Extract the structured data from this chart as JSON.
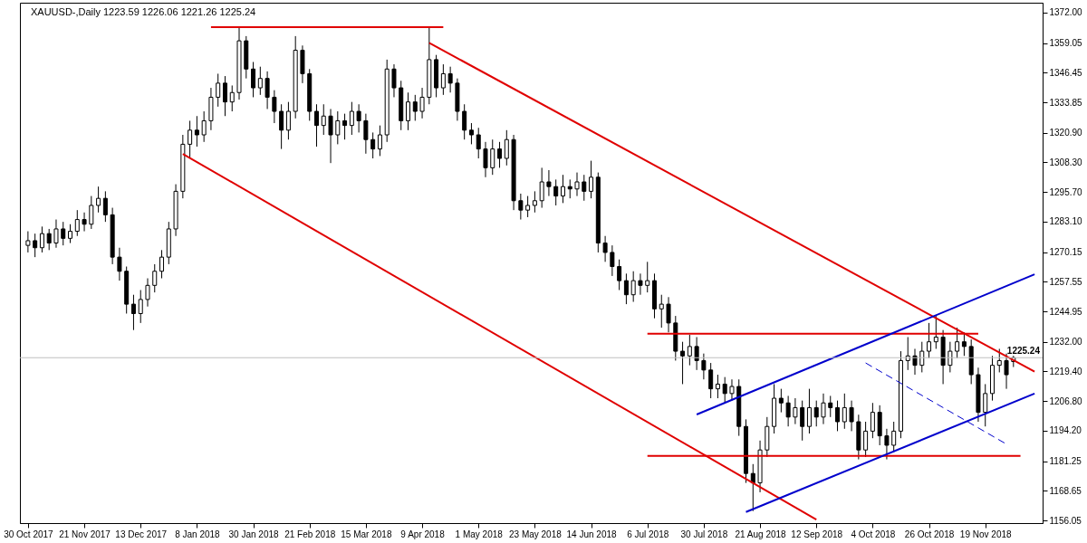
{
  "chart_data": {
    "type": "candlestick",
    "title": "XAUUSD-,Daily",
    "subtitle": "1223.59 1226.06 1221.26 1225.24",
    "categories": [
      "30 Oct 2017",
      null,
      null,
      null,
      null,
      null,
      null,
      null,
      "21 Nov 2017",
      null,
      null,
      null,
      null,
      null,
      null,
      null,
      "13 Dec 2017",
      null,
      null,
      null,
      null,
      null,
      null,
      null,
      "8 Jan 2018",
      null,
      null,
      null,
      null,
      null,
      null,
      null,
      "30 Jan 2018",
      null,
      null,
      null,
      null,
      null,
      null,
      null,
      "21 Feb 2018",
      null,
      null,
      null,
      null,
      null,
      null,
      null,
      "15 Mar 2018",
      null,
      null,
      null,
      null,
      null,
      null,
      null,
      "9 Apr 2018",
      null,
      null,
      null,
      null,
      null,
      null,
      null,
      "1 May 2018",
      null,
      null,
      null,
      null,
      null,
      null,
      null,
      "23 May 2018",
      null,
      null,
      null,
      null,
      null,
      null,
      null,
      "14 Jun 2018",
      null,
      null,
      null,
      null,
      null,
      null,
      null,
      "6 Jul 2018",
      null,
      null,
      null,
      null,
      null,
      null,
      null,
      "30 Jul 2018",
      null,
      null,
      null,
      null,
      null,
      null,
      null,
      "21 Aug 2018",
      null,
      null,
      null,
      null,
      null,
      null,
      null,
      "12 Sep 2018",
      null,
      null,
      null,
      null,
      null,
      null,
      null,
      "4 Oct 2018",
      null,
      null,
      null,
      null,
      null,
      null,
      null,
      "26 Oct 2018",
      null,
      null,
      null,
      null,
      null,
      null,
      null,
      "19 Nov 2018",
      null,
      null,
      null,
      null,
      null,
      null,
      null
    ],
    "ohlc": [
      [
        1273,
        1279,
        1270,
        1275
      ],
      [
        1275,
        1278,
        1268,
        1272
      ],
      [
        1272,
        1281,
        1270,
        1278
      ],
      [
        1278,
        1280,
        1271,
        1274
      ],
      [
        1274,
        1284,
        1272,
        1280
      ],
      [
        1280,
        1283,
        1273,
        1276
      ],
      [
        1276,
        1282,
        1274,
        1279
      ],
      [
        1279,
        1288,
        1277,
        1284
      ],
      [
        1284,
        1287,
        1279,
        1282
      ],
      [
        1282,
        1294,
        1280,
        1290
      ],
      [
        1290,
        1298,
        1287,
        1293
      ],
      [
        1293,
        1296,
        1283,
        1286
      ],
      [
        1286,
        1289,
        1265,
        1268
      ],
      [
        1268,
        1272,
        1258,
        1262
      ],
      [
        1262,
        1264,
        1244,
        1248
      ],
      [
        1248,
        1252,
        1237,
        1244
      ],
      [
        1244,
        1254,
        1240,
        1250
      ],
      [
        1250,
        1259,
        1247,
        1256
      ],
      [
        1256,
        1265,
        1253,
        1262
      ],
      [
        1262,
        1271,
        1259,
        1268
      ],
      [
        1268,
        1283,
        1265,
        1280
      ],
      [
        1280,
        1299,
        1277,
        1296
      ],
      [
        1296,
        1320,
        1293,
        1316
      ],
      [
        1316,
        1326,
        1310,
        1322
      ],
      [
        1322,
        1328,
        1315,
        1320
      ],
      [
        1320,
        1330,
        1317,
        1326
      ],
      [
        1326,
        1340,
        1322,
        1336
      ],
      [
        1336,
        1346,
        1332,
        1342
      ],
      [
        1342,
        1345,
        1328,
        1334
      ],
      [
        1334,
        1341,
        1330,
        1338
      ],
      [
        1338,
        1366,
        1335,
        1360
      ],
      [
        1360,
        1362,
        1344,
        1348
      ],
      [
        1348,
        1351,
        1336,
        1340
      ],
      [
        1340,
        1349,
        1337,
        1344
      ],
      [
        1344,
        1347,
        1331,
        1336
      ],
      [
        1336,
        1339,
        1325,
        1330
      ],
      [
        1330,
        1333,
        1314,
        1322
      ],
      [
        1322,
        1334,
        1318,
        1330
      ],
      [
        1330,
        1362,
        1327,
        1356
      ],
      [
        1356,
        1358,
        1342,
        1346
      ],
      [
        1346,
        1348,
        1326,
        1330
      ],
      [
        1330,
        1333,
        1315,
        1324
      ],
      [
        1324,
        1333,
        1320,
        1328
      ],
      [
        1328,
        1331,
        1308,
        1320
      ],
      [
        1320,
        1330,
        1316,
        1326
      ],
      [
        1326,
        1329,
        1318,
        1324
      ],
      [
        1324,
        1334,
        1320,
        1330
      ],
      [
        1330,
        1333,
        1321,
        1326
      ],
      [
        1326,
        1329,
        1312,
        1318
      ],
      [
        1318,
        1321,
        1310,
        1314
      ],
      [
        1314,
        1324,
        1311,
        1320
      ],
      [
        1320,
        1352,
        1317,
        1348
      ],
      [
        1348,
        1350,
        1336,
        1340
      ],
      [
        1340,
        1343,
        1322,
        1326
      ],
      [
        1326,
        1338,
        1322,
        1334
      ],
      [
        1334,
        1337,
        1326,
        1330
      ],
      [
        1330,
        1340,
        1327,
        1336
      ],
      [
        1336,
        1366,
        1333,
        1352
      ],
      [
        1352,
        1354,
        1336,
        1340
      ],
      [
        1340,
        1350,
        1337,
        1346
      ],
      [
        1346,
        1349,
        1338,
        1342
      ],
      [
        1342,
        1344,
        1326,
        1330
      ],
      [
        1330,
        1333,
        1318,
        1322
      ],
      [
        1322,
        1325,
        1316,
        1320
      ],
      [
        1320,
        1323,
        1310,
        1314
      ],
      [
        1314,
        1317,
        1302,
        1306
      ],
      [
        1306,
        1318,
        1303,
        1314
      ],
      [
        1314,
        1317,
        1306,
        1310
      ],
      [
        1310,
        1322,
        1307,
        1318
      ],
      [
        1318,
        1320,
        1288,
        1292
      ],
      [
        1292,
        1295,
        1284,
        1288
      ],
      [
        1288,
        1294,
        1285,
        1290
      ],
      [
        1290,
        1296,
        1287,
        1292
      ],
      [
        1292,
        1306,
        1289,
        1300
      ],
      [
        1300,
        1305,
        1294,
        1298
      ],
      [
        1298,
        1301,
        1290,
        1294
      ],
      [
        1294,
        1303,
        1291,
        1298
      ],
      [
        1298,
        1301,
        1293,
        1297
      ],
      [
        1297,
        1304,
        1294,
        1300
      ],
      [
        1300,
        1303,
        1292,
        1296
      ],
      [
        1296,
        1309,
        1293,
        1302
      ],
      [
        1302,
        1304,
        1270,
        1274
      ],
      [
        1274,
        1277,
        1266,
        1270
      ],
      [
        1270,
        1273,
        1260,
        1264
      ],
      [
        1264,
        1267,
        1254,
        1258
      ],
      [
        1258,
        1261,
        1248,
        1252
      ],
      [
        1252,
        1262,
        1249,
        1258
      ],
      [
        1258,
        1261,
        1252,
        1256
      ],
      [
        1256,
        1266,
        1253,
        1258
      ],
      [
        1258,
        1261,
        1242,
        1246
      ],
      [
        1246,
        1252,
        1238,
        1248
      ],
      [
        1248,
        1251,
        1236,
        1240
      ],
      [
        1240,
        1243,
        1224,
        1228
      ],
      [
        1228,
        1232,
        1214,
        1226
      ],
      [
        1226,
        1235,
        1222,
        1230
      ],
      [
        1230,
        1234,
        1220,
        1224
      ],
      [
        1224,
        1227,
        1216,
        1220
      ],
      [
        1220,
        1223,
        1208,
        1212
      ],
      [
        1212,
        1218,
        1208,
        1214
      ],
      [
        1214,
        1217,
        1206,
        1210
      ],
      [
        1210,
        1216,
        1207,
        1213
      ],
      [
        1213,
        1216,
        1192,
        1196
      ],
      [
        1196,
        1199,
        1172,
        1176
      ],
      [
        1176,
        1180,
        1160,
        1172
      ],
      [
        1172,
        1190,
        1168,
        1186
      ],
      [
        1186,
        1200,
        1183,
        1196
      ],
      [
        1196,
        1214,
        1193,
        1208
      ],
      [
        1208,
        1212,
        1202,
        1206
      ],
      [
        1206,
        1209,
        1196,
        1200
      ],
      [
        1200,
        1208,
        1197,
        1204
      ],
      [
        1204,
        1207,
        1190,
        1196
      ],
      [
        1196,
        1212,
        1193,
        1204
      ],
      [
        1204,
        1207,
        1196,
        1200
      ],
      [
        1200,
        1210,
        1197,
        1206
      ],
      [
        1206,
        1209,
        1200,
        1204
      ],
      [
        1204,
        1207,
        1194,
        1198
      ],
      [
        1198,
        1210,
        1195,
        1204
      ],
      [
        1204,
        1207,
        1194,
        1198
      ],
      [
        1198,
        1201,
        1182,
        1186
      ],
      [
        1186,
        1198,
        1183,
        1194
      ],
      [
        1194,
        1206,
        1191,
        1202
      ],
      [
        1202,
        1205,
        1188,
        1192
      ],
      [
        1192,
        1195,
        1182,
        1188
      ],
      [
        1188,
        1198,
        1185,
        1194
      ],
      [
        1194,
        1228,
        1191,
        1224
      ],
      [
        1224,
        1234,
        1220,
        1226
      ],
      [
        1226,
        1229,
        1218,
        1222
      ],
      [
        1222,
        1232,
        1219,
        1228
      ],
      [
        1228,
        1240,
        1225,
        1232
      ],
      [
        1232,
        1243,
        1229,
        1234
      ],
      [
        1234,
        1237,
        1214,
        1222
      ],
      [
        1222,
        1232,
        1219,
        1228
      ],
      [
        1228,
        1238,
        1225,
        1232
      ],
      [
        1232,
        1236,
        1226,
        1230
      ],
      [
        1230,
        1233,
        1214,
        1218
      ],
      [
        1218,
        1221,
        1198,
        1202
      ],
      [
        1202,
        1214,
        1196,
        1210
      ],
      [
        1210,
        1226,
        1207,
        1222
      ],
      [
        1222,
        1229,
        1219,
        1224
      ],
      [
        1224,
        1227,
        1212,
        1218
      ],
      [
        1223.59,
        1226.06,
        1221.26,
        1225.24
      ],
      null,
      null,
      null
    ],
    "series": [
      {
        "type": "line",
        "color": "#e00000",
        "values": [
          null,
          null,
          null,
          null,
          null,
          null,
          null,
          null,
          null,
          null,
          null,
          null,
          null,
          null,
          null,
          null,
          null,
          null,
          null,
          null,
          null,
          null,
          null,
          null,
          null,
          null,
          1365.8,
          null,
          null,
          null,
          null,
          null,
          null,
          null,
          null,
          null,
          null,
          null,
          null,
          null,
          null,
          null,
          null,
          null,
          null,
          null,
          null,
          null,
          null,
          null,
          null,
          null,
          null,
          null,
          null,
          null,
          null,
          null,
          null,
          1365.8,
          null,
          null,
          null,
          null,
          null,
          null,
          null,
          null,
          null,
          null,
          null,
          null,
          null,
          null,
          null,
          null,
          null,
          null,
          null,
          null,
          null,
          null,
          null,
          null,
          null,
          null,
          null,
          null,
          null,
          null,
          null,
          null,
          null,
          null,
          null,
          null,
          null,
          null,
          null,
          null,
          null,
          null,
          null,
          null,
          null,
          null,
          null,
          null,
          null,
          null,
          null,
          null,
          null,
          null,
          null,
          null,
          null,
          null,
          null,
          null,
          null,
          null,
          null,
          null,
          null,
          null,
          null,
          null,
          null,
          null,
          null,
          null,
          null,
          null,
          null,
          null,
          null,
          null,
          null,
          null,
          null,
          null,
          null,
          null
        ]
      },
      {
        "type": "line",
        "color": "#e00000",
        "values": [
          null,
          null,
          null,
          null,
          null,
          null,
          null,
          null,
          null,
          null,
          null,
          null,
          null,
          null,
          null,
          null,
          null,
          null,
          null,
          null,
          null,
          null,
          null,
          null,
          null,
          null,
          null,
          null,
          null,
          null,
          null,
          null,
          null,
          null,
          null,
          null,
          null,
          null,
          null,
          null,
          null,
          null,
          null,
          null,
          null,
          null,
          null,
          null,
          null,
          null,
          null,
          null,
          null,
          null,
          null,
          null,
          null,
          1359.1,
          null,
          null,
          null,
          null,
          null,
          null,
          null,
          null,
          null,
          null,
          null,
          null,
          null,
          null,
          null,
          null,
          null,
          null,
          null,
          null,
          null,
          null,
          null,
          null,
          null,
          null,
          null,
          null,
          null,
          null,
          null,
          null,
          null,
          null,
          null,
          null,
          null,
          null,
          null,
          null,
          null,
          null,
          null,
          null,
          null,
          null,
          null,
          null,
          null,
          null,
          null,
          null,
          null,
          null,
          null,
          null,
          null,
          null,
          null,
          null,
          null,
          null,
          null,
          null,
          null,
          null,
          null,
          null,
          null,
          null,
          null,
          null,
          null,
          null,
          null,
          null,
          null,
          null,
          null,
          null,
          null,
          null,
          null,
          null,
          null,
          1219.3
        ]
      },
      {
        "type": "line",
        "color": "#e00000",
        "values": [
          null,
          null,
          null,
          null,
          null,
          null,
          null,
          null,
          null,
          null,
          null,
          null,
          null,
          null,
          null,
          null,
          null,
          null,
          null,
          null,
          null,
          null,
          1311.9,
          null,
          null,
          null,
          null,
          null,
          null,
          null,
          null,
          null,
          null,
          null,
          null,
          null,
          null,
          null,
          null,
          null,
          null,
          null,
          null,
          null,
          null,
          null,
          null,
          null,
          null,
          null,
          null,
          null,
          null,
          null,
          null,
          null,
          null,
          null,
          null,
          null,
          null,
          null,
          null,
          null,
          null,
          null,
          null,
          null,
          null,
          null,
          null,
          null,
          null,
          null,
          null,
          null,
          null,
          null,
          null,
          null,
          null,
          null,
          null,
          null,
          null,
          null,
          null,
          null,
          null,
          null,
          null,
          null,
          null,
          null,
          null,
          null,
          null,
          null,
          null,
          null,
          null,
          null,
          null,
          null,
          null,
          null,
          null,
          null,
          null,
          null,
          null,
          null,
          1156.4,
          null,
          null,
          null,
          null,
          null,
          null,
          null,
          null,
          null,
          null,
          null,
          null,
          null,
          null,
          null,
          null,
          null,
          null,
          null,
          null,
          null,
          null,
          null,
          null,
          null,
          null,
          null,
          null,
          null,
          null,
          null
        ]
      },
      {
        "type": "line",
        "color": "#e00000",
        "values": [
          null,
          null,
          null,
          null,
          null,
          null,
          null,
          null,
          null,
          null,
          null,
          null,
          null,
          null,
          null,
          null,
          null,
          null,
          null,
          null,
          null,
          null,
          null,
          null,
          null,
          null,
          null,
          null,
          null,
          null,
          null,
          null,
          null,
          null,
          null,
          null,
          null,
          null,
          null,
          null,
          null,
          null,
          null,
          null,
          null,
          null,
          null,
          null,
          null,
          null,
          null,
          null,
          null,
          null,
          null,
          null,
          null,
          null,
          null,
          null,
          null,
          null,
          null,
          null,
          null,
          null,
          null,
          null,
          null,
          null,
          null,
          null,
          null,
          null,
          null,
          null,
          null,
          null,
          null,
          null,
          null,
          null,
          null,
          null,
          null,
          null,
          null,
          null,
          1235.4,
          null,
          null,
          null,
          null,
          null,
          null,
          null,
          null,
          null,
          null,
          null,
          null,
          null,
          null,
          null,
          null,
          null,
          null,
          null,
          null,
          null,
          null,
          null,
          null,
          null,
          null,
          null,
          null,
          null,
          null,
          null,
          null,
          null,
          null,
          null,
          null,
          null,
          null,
          null,
          null,
          null,
          null,
          null,
          null,
          null,
          null,
          1235.4,
          null,
          null,
          null,
          null,
          null,
          null,
          null,
          null
        ]
      },
      {
        "type": "line",
        "color": "#e00000",
        "values": [
          null,
          null,
          null,
          null,
          null,
          null,
          null,
          null,
          null,
          null,
          null,
          null,
          null,
          null,
          null,
          null,
          null,
          null,
          null,
          null,
          null,
          null,
          null,
          null,
          null,
          null,
          null,
          null,
          null,
          null,
          null,
          null,
          null,
          null,
          null,
          null,
          null,
          null,
          null,
          null,
          null,
          null,
          null,
          null,
          null,
          null,
          null,
          null,
          null,
          null,
          null,
          null,
          null,
          null,
          null,
          null,
          null,
          null,
          null,
          null,
          null,
          null,
          null,
          null,
          null,
          null,
          null,
          null,
          null,
          null,
          null,
          null,
          null,
          null,
          null,
          null,
          null,
          null,
          null,
          null,
          null,
          null,
          null,
          null,
          null,
          null,
          null,
          null,
          1183.5,
          null,
          null,
          null,
          null,
          null,
          null,
          null,
          null,
          null,
          null,
          null,
          null,
          null,
          null,
          null,
          null,
          null,
          null,
          null,
          null,
          null,
          null,
          null,
          null,
          null,
          null,
          null,
          null,
          null,
          null,
          null,
          null,
          null,
          null,
          null,
          null,
          null,
          null,
          null,
          null,
          null,
          null,
          null,
          null,
          null,
          null,
          null,
          null,
          null,
          null,
          null,
          null,
          1183.5,
          null,
          null
        ]
      },
      {
        "type": "line",
        "color": "#0000cc",
        "values": [
          null,
          null,
          null,
          null,
          null,
          null,
          null,
          null,
          null,
          null,
          null,
          null,
          null,
          null,
          null,
          null,
          null,
          null,
          null,
          null,
          null,
          null,
          null,
          null,
          null,
          null,
          null,
          null,
          null,
          null,
          null,
          null,
          null,
          null,
          null,
          null,
          null,
          null,
          null,
          null,
          null,
          null,
          null,
          null,
          null,
          null,
          null,
          null,
          null,
          null,
          null,
          null,
          null,
          null,
          null,
          null,
          null,
          null,
          null,
          null,
          null,
          null,
          null,
          null,
          null,
          null,
          null,
          null,
          null,
          null,
          null,
          null,
          null,
          null,
          null,
          null,
          null,
          null,
          null,
          null,
          null,
          null,
          null,
          null,
          null,
          null,
          null,
          null,
          null,
          null,
          null,
          null,
          null,
          null,
          null,
          1201.1,
          null,
          null,
          null,
          null,
          null,
          null,
          null,
          null,
          null,
          null,
          null,
          null,
          null,
          null,
          null,
          null,
          null,
          null,
          null,
          null,
          null,
          null,
          null,
          null,
          null,
          null,
          null,
          null,
          null,
          null,
          null,
          null,
          null,
          null,
          null,
          null,
          null,
          null,
          null,
          null,
          null,
          null,
          null,
          null,
          null,
          null,
          null,
          1260.7
        ]
      },
      {
        "type": "line",
        "color": "#0000cc",
        "values": [
          null,
          null,
          null,
          null,
          null,
          null,
          null,
          null,
          null,
          null,
          null,
          null,
          null,
          null,
          null,
          null,
          null,
          null,
          null,
          null,
          null,
          null,
          null,
          null,
          null,
          null,
          null,
          null,
          null,
          null,
          null,
          null,
          null,
          null,
          null,
          null,
          null,
          null,
          null,
          null,
          null,
          null,
          null,
          null,
          null,
          null,
          null,
          null,
          null,
          null,
          null,
          null,
          null,
          null,
          null,
          null,
          null,
          null,
          null,
          null,
          null,
          null,
          null,
          null,
          null,
          null,
          null,
          null,
          null,
          null,
          null,
          null,
          null,
          null,
          null,
          null,
          null,
          null,
          null,
          null,
          null,
          null,
          null,
          null,
          null,
          null,
          null,
          null,
          null,
          null,
          null,
          null,
          null,
          null,
          null,
          null,
          null,
          null,
          null,
          null,
          null,
          null,
          1159.6,
          null,
          null,
          null,
          null,
          null,
          null,
          null,
          null,
          null,
          null,
          null,
          null,
          null,
          null,
          null,
          null,
          null,
          null,
          null,
          null,
          null,
          null,
          null,
          null,
          null,
          null,
          null,
          null,
          null,
          null,
          null,
          null,
          null,
          null,
          null,
          null,
          null,
          null,
          null,
          null,
          1210.0
        ]
      },
      {
        "type": "line",
        "color": "#0000cc",
        "line_style": "dashed",
        "values": [
          null,
          null,
          null,
          null,
          null,
          null,
          null,
          null,
          null,
          null,
          null,
          null,
          null,
          null,
          null,
          null,
          null,
          null,
          null,
          null,
          null,
          null,
          null,
          null,
          null,
          null,
          null,
          null,
          null,
          null,
          null,
          null,
          null,
          null,
          null,
          null,
          null,
          null,
          null,
          null,
          null,
          null,
          null,
          null,
          null,
          null,
          null,
          null,
          null,
          null,
          null,
          null,
          null,
          null,
          null,
          null,
          null,
          null,
          null,
          null,
          null,
          null,
          null,
          null,
          null,
          null,
          null,
          null,
          null,
          null,
          null,
          null,
          null,
          null,
          null,
          null,
          null,
          null,
          null,
          null,
          null,
          null,
          null,
          null,
          null,
          null,
          null,
          null,
          null,
          null,
          null,
          null,
          null,
          null,
          null,
          null,
          null,
          null,
          null,
          null,
          null,
          null,
          null,
          null,
          null,
          null,
          null,
          null,
          null,
          null,
          null,
          null,
          null,
          null,
          null,
          null,
          null,
          null,
          null,
          1223.0,
          null,
          null,
          null,
          null,
          null,
          null,
          null,
          null,
          null,
          null,
          null,
          null,
          null,
          null,
          null,
          null,
          null,
          null,
          null,
          1188.5,
          null,
          null,
          null,
          null
        ]
      }
    ],
    "ref_lines": [
      {
        "axis": "y",
        "value": 1225.24,
        "label": "1225.24",
        "color": "#c0c0c0"
      }
    ],
    "ylim": [
      1154.9,
      1376.2
    ],
    "yticks": [
      1156.05,
      1168.65,
      1181.25,
      {
        "value": 1194.2,
        "label": "1194.20"
      },
      {
        "value": 1206.8,
        "label": "1206.80"
      },
      {
        "value": 1219.4,
        "label": "1219.40"
      },
      {
        "value": 1232,
        "label": "1232.00"
      },
      1244.95,
      1257.55,
      1270.15,
      {
        "value": 1283.1,
        "label": "1283.10"
      },
      {
        "value": 1295.7,
        "label": "1295.70"
      },
      {
        "value": 1308.3,
        "label": "1308.30"
      },
      {
        "value": 1320.9,
        "label": "1320.90"
      },
      1333.85,
      1346.45,
      1359.05,
      {
        "value": 1372,
        "label": "1372.00"
      }
    ],
    "grid": false
  }
}
